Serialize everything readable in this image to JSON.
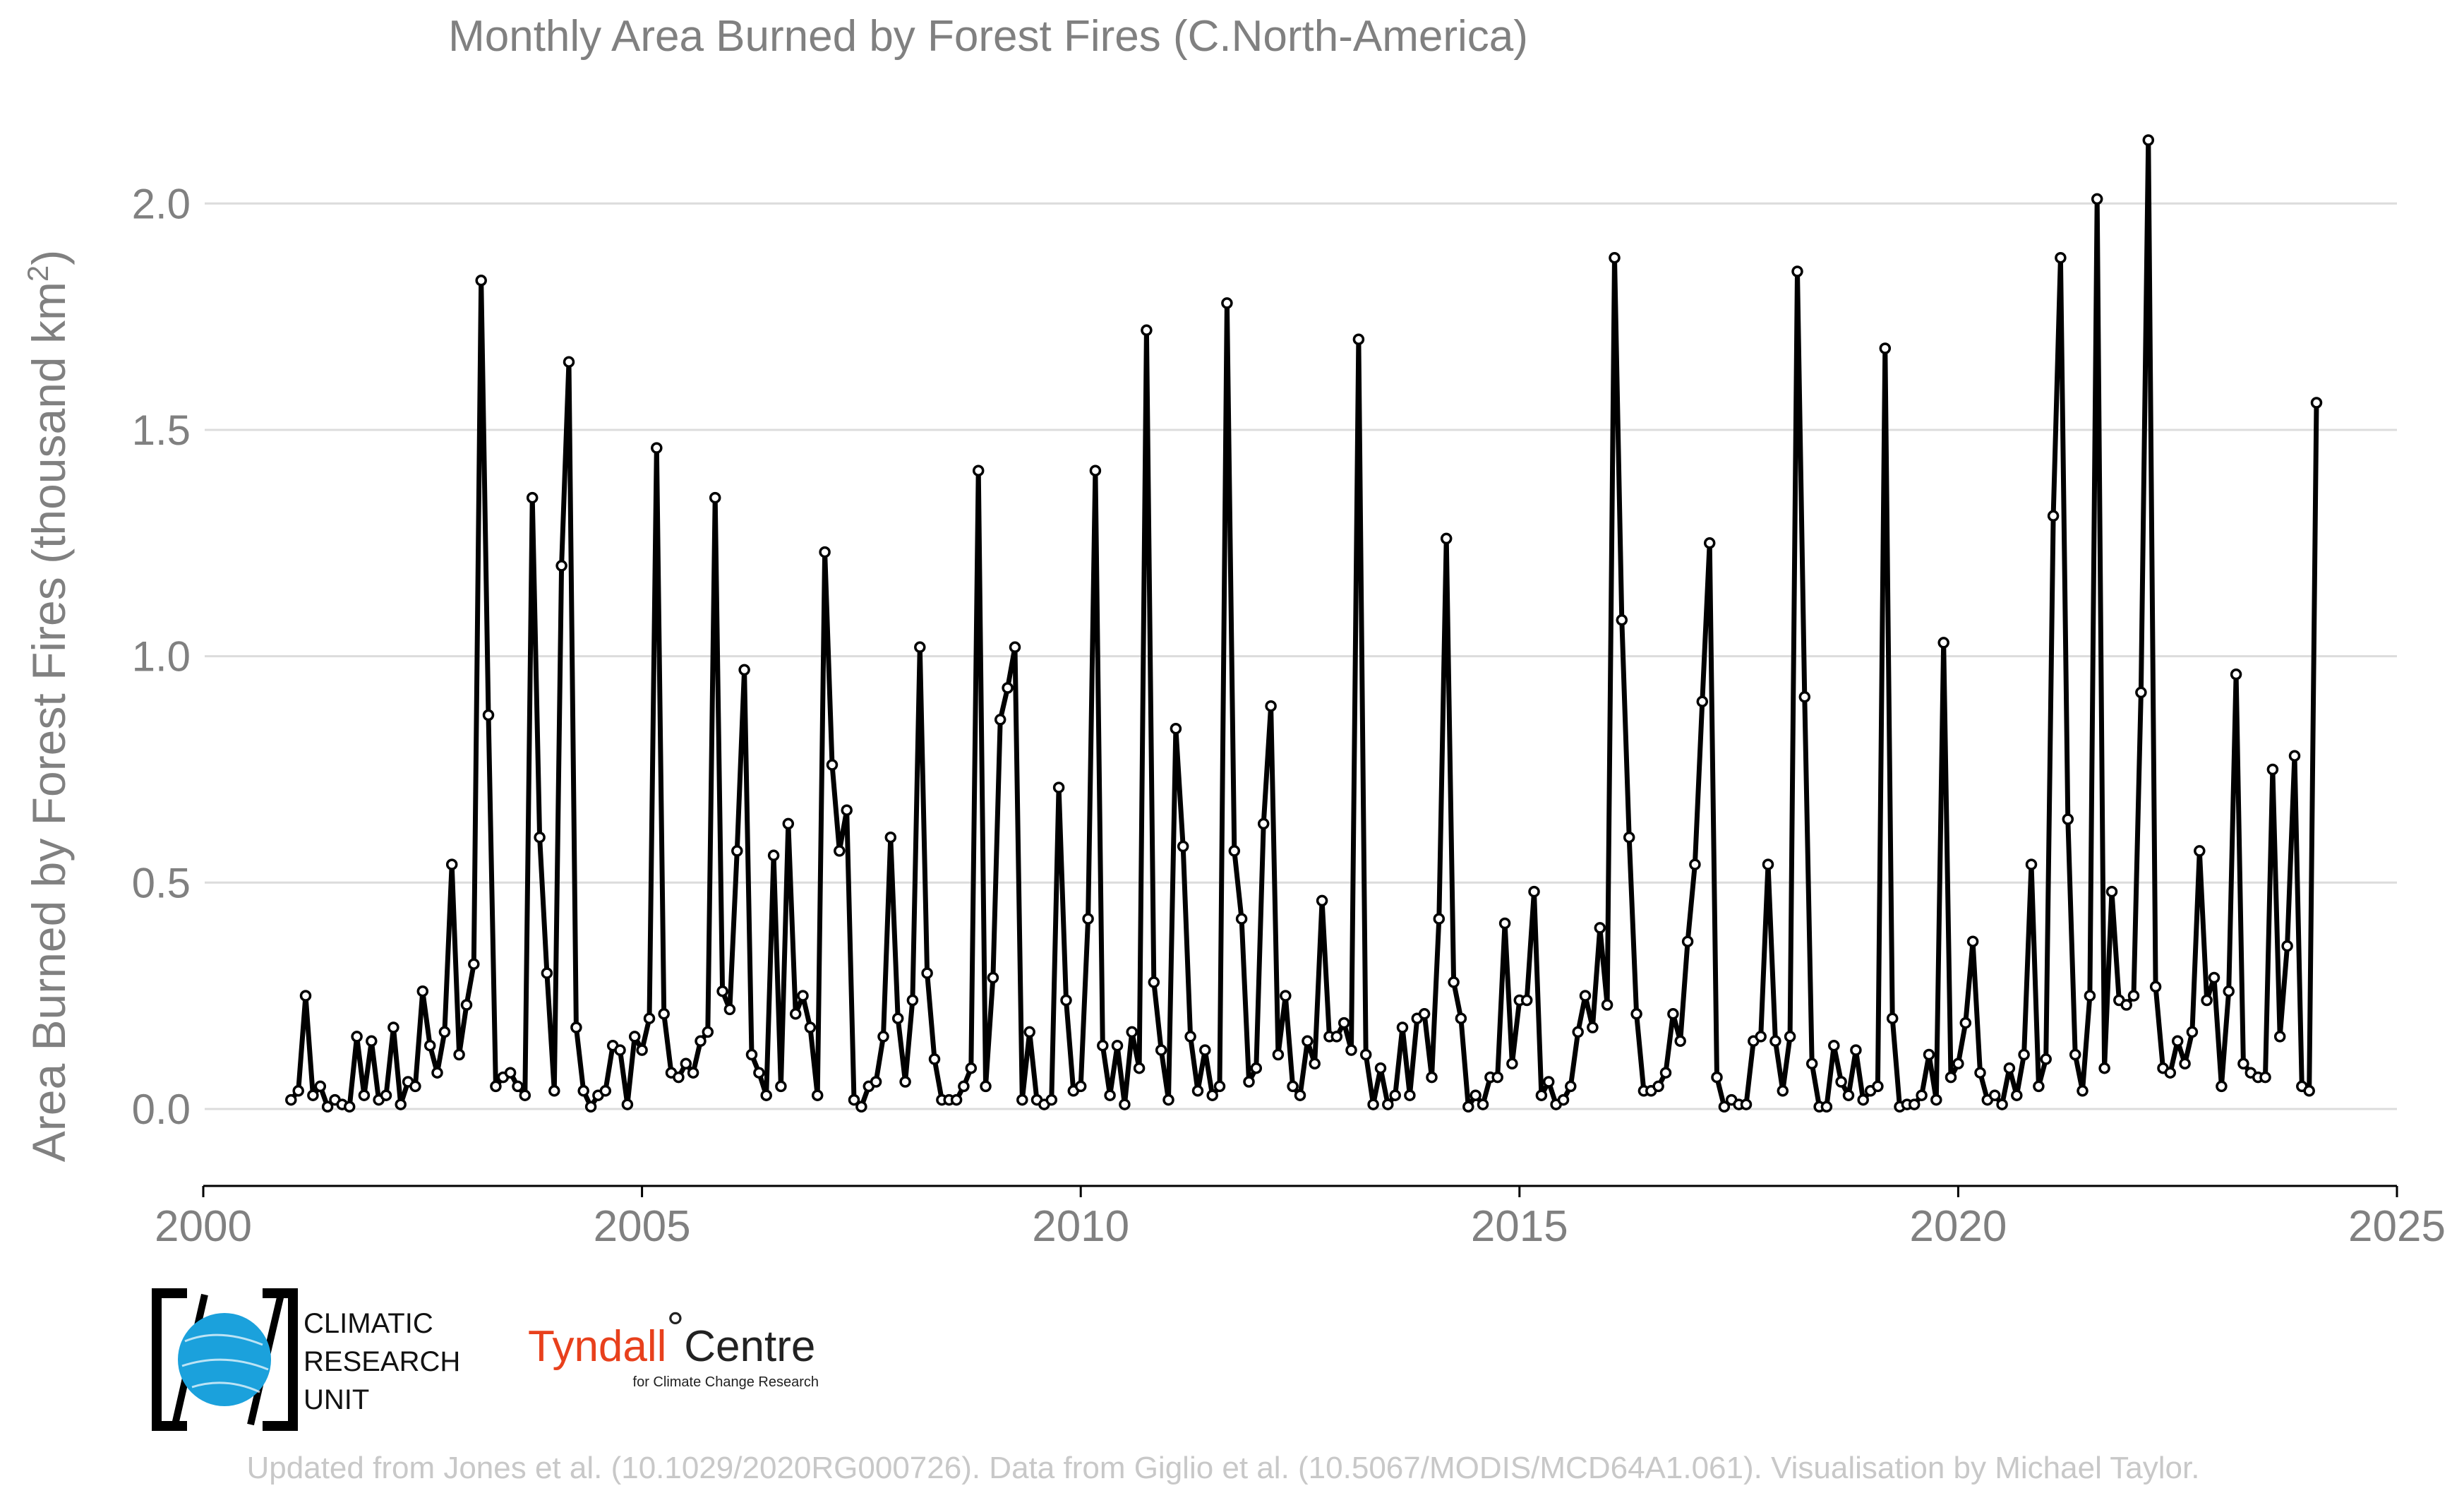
{
  "chart_data": {
    "type": "line",
    "title": "Monthly Area Burned by Forest Fires (C.North-America)",
    "ylabel": "Area Burned by Forest Fires (thousand km",
    "ylabel_superscript": "2",
    "ylabel_close": ")",
    "xlabel": "",
    "xlim": [
      2000,
      2025
    ],
    "ylim": [
      -0.17,
      2.2
    ],
    "x_ticks": [
      2000,
      2005,
      2010,
      2015,
      2020,
      2025
    ],
    "x_tick_labels": [
      "2000",
      "2005",
      "2010",
      "2015",
      "2020",
      "2025"
    ],
    "y_ticks": [
      0.0,
      0.5,
      1.0,
      1.5,
      2.0
    ],
    "y_tick_labels": [
      "0.0",
      "0.5",
      "1.0",
      "1.5",
      "2.0"
    ],
    "grid": true,
    "start": "2001-01",
    "frequency": "monthly",
    "series": [
      {
        "values": [
          0.02,
          0.04,
          0.25,
          0.03,
          0.05,
          0.005,
          0.02,
          0.01,
          0.005,
          0.16,
          0.03,
          0.15,
          0.02,
          0.03,
          0.18,
          0.01,
          0.06,
          0.05,
          0.26,
          0.14,
          0.08,
          0.17,
          0.54,
          0.12,
          0.23,
          0.32,
          1.83,
          0.87,
          0.05,
          0.07,
          0.08,
          0.05,
          0.03,
          1.35,
          0.6,
          0.3,
          0.04,
          1.2,
          1.65,
          0.18,
          0.04,
          0.005,
          0.03,
          0.04,
          0.14,
          0.13,
          0.01,
          0.16,
          0.13,
          0.2,
          1.46,
          0.21,
          0.08,
          0.07,
          0.1,
          0.08,
          0.15,
          0.17,
          1.35,
          0.26,
          0.22,
          0.57,
          0.97,
          0.12,
          0.08,
          0.03,
          0.56,
          0.05,
          0.63,
          0.21,
          0.25,
          0.18,
          0.03,
          1.23,
          0.76,
          0.57,
          0.66,
          0.02,
          0.005,
          0.05,
          0.06,
          0.16,
          0.6,
          0.2,
          0.06,
          0.24,
          1.02,
          0.3,
          0.11,
          0.02,
          0.02,
          0.02,
          0.05,
          0.09,
          1.41,
          0.05,
          0.29,
          0.86,
          0.93,
          1.02,
          0.02,
          0.17,
          0.02,
          0.01,
          0.02,
          0.71,
          0.24,
          0.04,
          0.05,
          0.42,
          1.41,
          0.14,
          0.03,
          0.14,
          0.01,
          0.17,
          0.09,
          1.72,
          0.28,
          0.13,
          0.02,
          0.84,
          0.58,
          0.16,
          0.04,
          0.13,
          0.03,
          0.05,
          1.78,
          0.57,
          0.42,
          0.06,
          0.09,
          0.63,
          0.89,
          0.12,
          0.25,
          0.05,
          0.03,
          0.15,
          0.1,
          0.46,
          0.16,
          0.16,
          0.19,
          0.13,
          1.7,
          0.12,
          0.01,
          0.09,
          0.01,
          0.03,
          0.18,
          0.03,
          0.2,
          0.21,
          0.07,
          0.42,
          1.26,
          0.28,
          0.2,
          0.005,
          0.03,
          0.01,
          0.07,
          0.07,
          0.41,
          0.1,
          0.24,
          0.24,
          0.48,
          0.03,
          0.06,
          0.01,
          0.02,
          0.05,
          0.17,
          0.25,
          0.18,
          0.4,
          0.23,
          1.88,
          1.08,
          0.6,
          0.21,
          0.04,
          0.04,
          0.05,
          0.08,
          0.21,
          0.15,
          0.37,
          0.54,
          0.9,
          1.25,
          0.07,
          0.005,
          0.02,
          0.01,
          0.01,
          0.15,
          0.16,
          0.54,
          0.15,
          0.04,
          0.16,
          1.85,
          0.91,
          0.1,
          0.005,
          0.005,
          0.14,
          0.06,
          0.03,
          0.13,
          0.02,
          0.04,
          0.05,
          1.68,
          0.2,
          0.005,
          0.01,
          0.01,
          0.03,
          0.12,
          0.02,
          1.03,
          0.07,
          0.1,
          0.19,
          0.37,
          0.08,
          0.02,
          0.03,
          0.01,
          0.09,
          0.03,
          0.12,
          0.54,
          0.05,
          0.11,
          1.31,
          1.88,
          0.64,
          0.12,
          0.04,
          0.25,
          2.01,
          0.09,
          0.48,
          0.24,
          0.23,
          0.25,
          0.92,
          2.14,
          0.27,
          0.09,
          0.08,
          0.15,
          0.1,
          0.17,
          0.57,
          0.24,
          0.29,
          0.05,
          0.26,
          0.96,
          0.1,
          0.08,
          0.07,
          0.07,
          0.75,
          0.16,
          0.36,
          0.78,
          0.05,
          0.04,
          1.56
        ]
      }
    ]
  },
  "logos": {
    "cru_line1": "CLIMATIC",
    "cru_line2": "RESEARCH",
    "cru_line3": "UNIT",
    "tyndall_part1": "Tyndall",
    "tyndall_degree": "°",
    "tyndall_part2": "Centre",
    "tyndall_sub": "for Climate Change Research"
  },
  "credit": "Updated from Jones et al. (10.1029/2020RG000726). Data from Giglio et al. (10.5067/MODIS/MCD64A1.061). Visualisation by Michael Taylor.",
  "colors": {
    "series": "#000000",
    "text": "#808080",
    "grid": "#dcdcdc",
    "credit": "#c8c8c8",
    "cru_blue": "#1ba1dc",
    "tyndall_red": "#e8401c"
  }
}
